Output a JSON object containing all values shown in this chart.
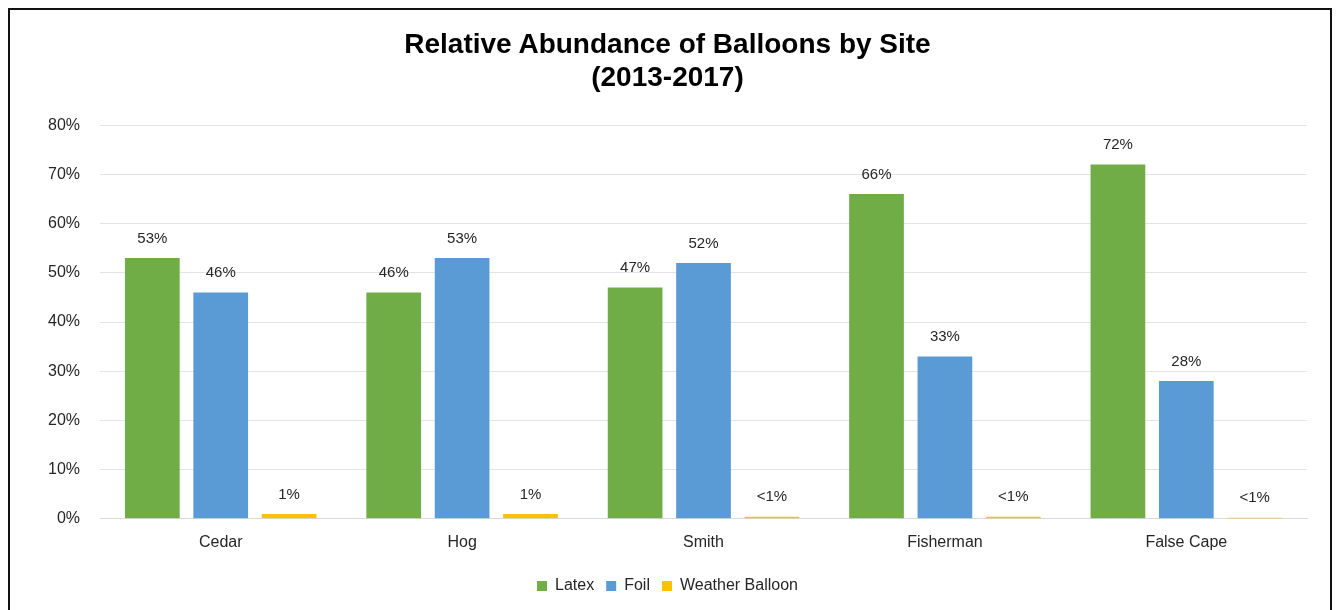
{
  "chart_data": {
    "type": "bar",
    "title": "Relative Abundance of Balloons by Site\n(2013-2017)",
    "categories": [
      "Cedar",
      "Hog",
      "Smith",
      "Fisherman",
      "False Cape"
    ],
    "series": [
      {
        "name": "Latex",
        "color": "#70ad47",
        "values": [
          53,
          46,
          47,
          66,
          72
        ],
        "value_labels": [
          "53%",
          "46%",
          "47%",
          "66%",
          "72%"
        ]
      },
      {
        "name": "Foil",
        "color": "#5b9bd5",
        "values": [
          46,
          53,
          52,
          33,
          28
        ],
        "value_labels": [
          "46%",
          "53%",
          "52%",
          "33%",
          "28%"
        ]
      },
      {
        "name": "Weather Balloon",
        "color": "#ffc000",
        "values": [
          1,
          1,
          0.4,
          0.4,
          0.2
        ],
        "value_labels": [
          "1%",
          "1%",
          "<1%",
          "<1%",
          "<1%"
        ]
      }
    ],
    "ylim": [
      0,
      80
    ],
    "yticks": [
      {
        "value": 0,
        "label": "0%"
      },
      {
        "value": 10,
        "label": "10%"
      },
      {
        "value": 20,
        "label": "20%"
      },
      {
        "value": 30,
        "label": "30%"
      },
      {
        "value": 40,
        "label": "40%"
      },
      {
        "value": 50,
        "label": "50%"
      },
      {
        "value": 60,
        "label": "60%"
      },
      {
        "value": 70,
        "label": "70%"
      },
      {
        "value": 80,
        "label": "80%"
      }
    ],
    "grid": "y",
    "legend": "bottom"
  }
}
